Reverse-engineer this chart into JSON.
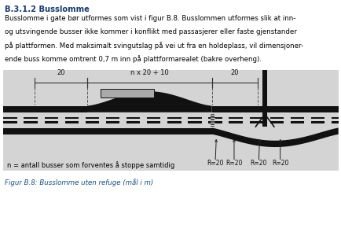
{
  "title": "B.3.1.2 Busslomme",
  "body_text": [
    "Busslomme i gate bør utformes som vist i figur B.8. Busslommen utformes slik at inn-",
    "og utsvingende busser ikke kommer i konflikt med passasjerer eller faste gjenstander",
    "på plattformen. Med maksimalt svingutslag på vei ut fra en holdeplass, vil dimensjoner-",
    "ende buss komme omtrent 0,7 m inn på plattformarealet (bakre overheng)."
  ],
  "note_text": "n = antall busser som forventes å stoppe samtidig",
  "caption_text": "Figur B.8: Busslomme uten refuge (mål i m)",
  "dim_labels": [
    "20",
    "n x 20 + 10",
    "20"
  ],
  "r_labels": [
    "R=20",
    "R=20",
    "R=20",
    "R=20"
  ],
  "title_color": "#1a3a6b",
  "caption_color": "#1a5080",
  "body_color": "#000000",
  "note_color": "#000000",
  "diagram_bg": "#d4d4d4",
  "road_color": "#111111",
  "dash_color": "#444444",
  "gray_fill": "#888888"
}
